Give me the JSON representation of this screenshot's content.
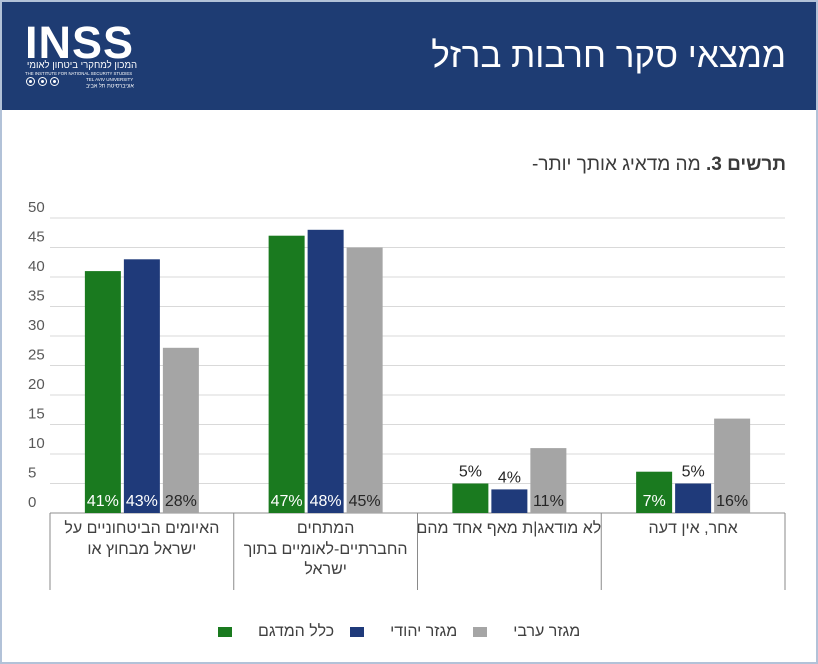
{
  "header": {
    "title": "ממצאי סקר חרבות ברזל",
    "background": "#1e3c73"
  },
  "logo": {
    "wordmark": "INSS",
    "name_he": "המכון למחקרי ביטחון לאומי",
    "name_en": "THE INSTITUTE FOR NATIONAL SECURITY STUDIES",
    "university_en": "TEL AVIV UNIVERSITY",
    "university_he": "אוניברסיטת תל אביב",
    "emblems": [
      "circle-emblem-icon",
      "circle-emblem-icon",
      "circle-emblem-icon"
    ]
  },
  "chart_data": {
    "type": "bar",
    "title_prefix": "תרשים 3.",
    "title": "מה מדאיג אותך יותר-",
    "categories": [
      "האיומים הביטחוניים על\nישראל מבחוץ או",
      "המתחים\nהחברתיים-לאומיים בתוך\nישראל",
      "לא מודאג|ת מאף אחד מהם",
      "אחר, אין דעה"
    ],
    "series": [
      {
        "name": "כלל המדגם",
        "color": "#1a7a1f",
        "values": [
          41,
          47,
          5,
          7
        ]
      },
      {
        "name": "מגזר יהודי",
        "color": "#1f3a7a",
        "values": [
          43,
          48,
          4,
          5
        ]
      },
      {
        "name": "מגזר ערבי",
        "color": "#a5a5a5",
        "values": [
          28,
          45,
          11,
          16
        ]
      }
    ],
    "unit": "%",
    "ylim": [
      0,
      50
    ],
    "y_ticks": [
      0,
      5,
      10,
      15,
      20,
      25,
      30,
      35,
      40,
      45,
      50
    ],
    "grid": true,
    "legend_position": "bottom"
  }
}
